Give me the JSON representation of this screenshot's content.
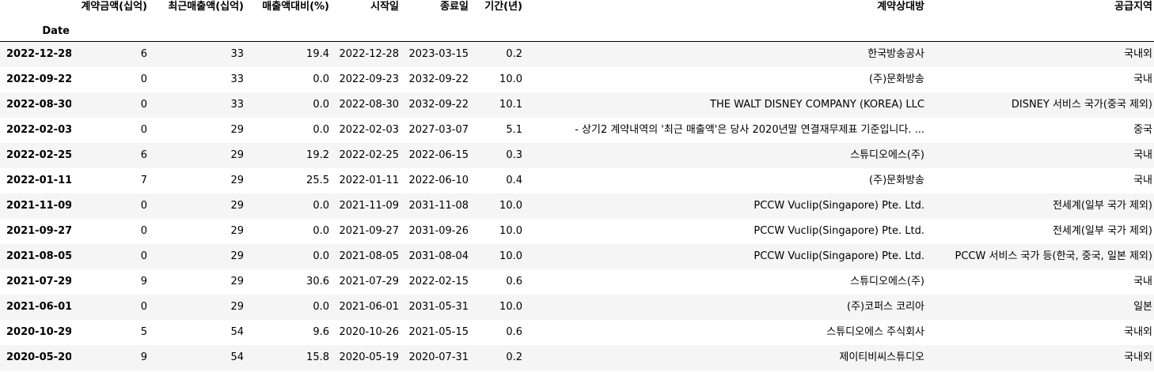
{
  "table": {
    "index_name": "Date",
    "columns": [
      "계약금액(십억)",
      "최근매출액(십억)",
      "매출액대비(%)",
      "시작일",
      "종료일",
      "기간(년)",
      "계약상대방",
      "공급지역"
    ],
    "rows": [
      {
        "date": "2022-12-28",
        "amount": "6",
        "revenue": "33",
        "ratio": "19.4",
        "start": "2022-12-28",
        "end": "2023-03-15",
        "years": "0.2",
        "party": "한국방송공사",
        "region": "국내외"
      },
      {
        "date": "2022-09-22",
        "amount": "0",
        "revenue": "33",
        "ratio": "0.0",
        "start": "2022-09-23",
        "end": "2032-09-22",
        "years": "10.0",
        "party": "(주)문화방송",
        "region": "국내"
      },
      {
        "date": "2022-08-30",
        "amount": "0",
        "revenue": "33",
        "ratio": "0.0",
        "start": "2022-08-30",
        "end": "2032-09-22",
        "years": "10.1",
        "party": "THE WALT DISNEY COMPANY (KOREA) LLC",
        "region": "DISNEY 서비스 국가(중국 제외)"
      },
      {
        "date": "2022-02-03",
        "amount": "0",
        "revenue": "29",
        "ratio": "0.0",
        "start": "2022-02-03",
        "end": "2027-03-07",
        "years": "5.1",
        "party": "- 상기2 계약내역의 '최근 매출액'은 당사 2020년말 연결재무제표 기준입니다. ...",
        "region": "중국"
      },
      {
        "date": "2022-02-25",
        "amount": "6",
        "revenue": "29",
        "ratio": "19.2",
        "start": "2022-02-25",
        "end": "2022-06-15",
        "years": "0.3",
        "party": "스튜디오에스(주)",
        "region": "국내"
      },
      {
        "date": "2022-01-11",
        "amount": "7",
        "revenue": "29",
        "ratio": "25.5",
        "start": "2022-01-11",
        "end": "2022-06-10",
        "years": "0.4",
        "party": "(주)문화방송",
        "region": "국내"
      },
      {
        "date": "2021-11-09",
        "amount": "0",
        "revenue": "29",
        "ratio": "0.0",
        "start": "2021-11-09",
        "end": "2031-11-08",
        "years": "10.0",
        "party": "PCCW Vuclip(Singapore) Pte. Ltd.",
        "region": "전세계(일부 국가 제외)"
      },
      {
        "date": "2021-09-27",
        "amount": "0",
        "revenue": "29",
        "ratio": "0.0",
        "start": "2021-09-27",
        "end": "2031-09-26",
        "years": "10.0",
        "party": "PCCW Vuclip(Singapore) Pte. Ltd.",
        "region": "전세계(일부 국가 제외)"
      },
      {
        "date": "2021-08-05",
        "amount": "0",
        "revenue": "29",
        "ratio": "0.0",
        "start": "2021-08-05",
        "end": "2031-08-04",
        "years": "10.0",
        "party": "PCCW Vuclip(Singapore) Pte. Ltd.",
        "region": "PCCW 서비스 국가 등(한국, 중국, 일본 제외)"
      },
      {
        "date": "2021-07-29",
        "amount": "9",
        "revenue": "29",
        "ratio": "30.6",
        "start": "2021-07-29",
        "end": "2022-02-15",
        "years": "0.6",
        "party": "스튜디오에스(주)",
        "region": "국내"
      },
      {
        "date": "2021-06-01",
        "amount": "0",
        "revenue": "29",
        "ratio": "0.0",
        "start": "2021-06-01",
        "end": "2031-05-31",
        "years": "10.0",
        "party": "(주)코퍼스 코리아",
        "region": "일본"
      },
      {
        "date": "2020-10-29",
        "amount": "5",
        "revenue": "54",
        "ratio": "9.6",
        "start": "2020-10-26",
        "end": "2021-05-15",
        "years": "0.6",
        "party": "스튜디오에스 주식회사",
        "region": "국내외"
      },
      {
        "date": "2020-05-20",
        "amount": "9",
        "revenue": "54",
        "ratio": "15.8",
        "start": "2020-05-19",
        "end": "2020-07-31",
        "years": "0.2",
        "party": "제이티비씨스튜디오",
        "region": "국내외"
      }
    ]
  }
}
